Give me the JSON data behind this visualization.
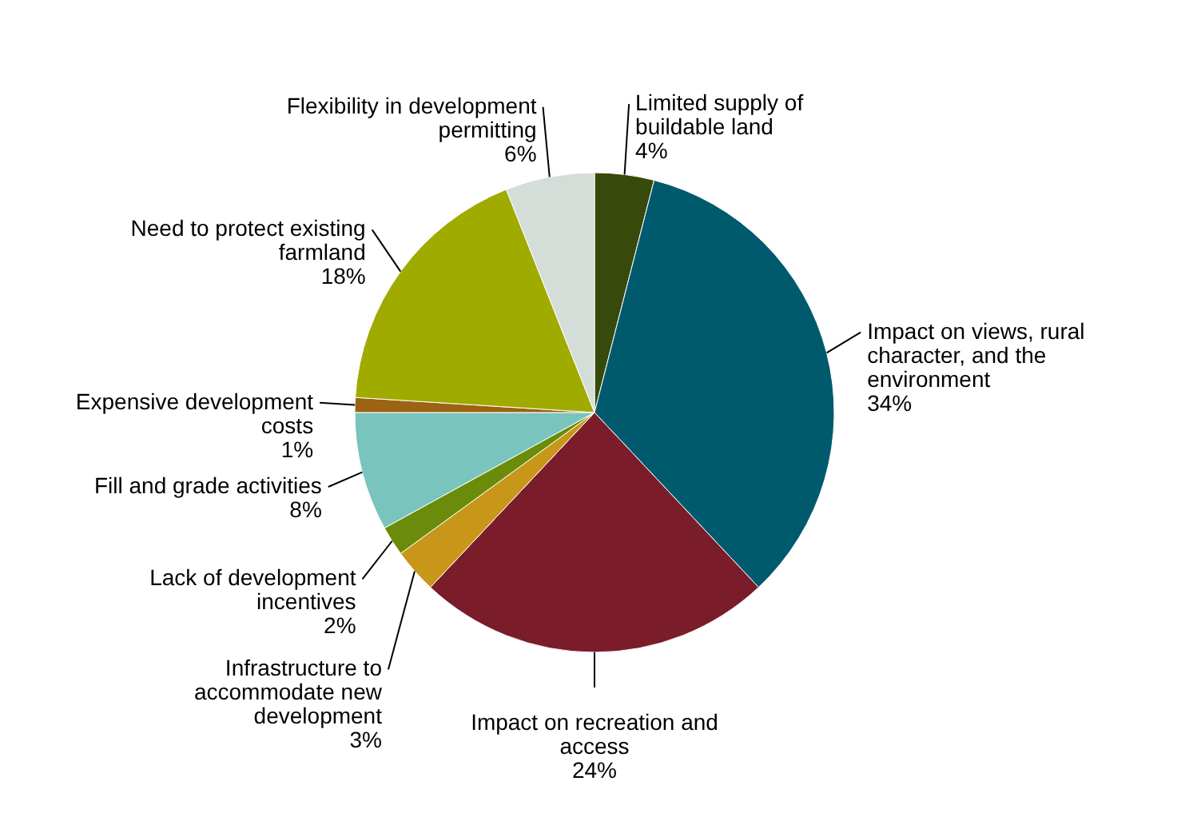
{
  "chart_data": {
    "type": "pie",
    "categories": [
      "Limited supply of buildable land",
      "Impact on views, rural character, and the environment",
      "Impact on recreation and access",
      "Infrastructure to accommodate new development",
      "Lack of development incentives",
      "Fill and grade activities",
      "Expensive development costs",
      "Need to protect existing farmland",
      "Flexibility in development permitting"
    ],
    "values": [
      4,
      34,
      24,
      3,
      2,
      8,
      1,
      18,
      6
    ],
    "value_labels": [
      "4%",
      "34%",
      "24%",
      "3%",
      "2%",
      "8%",
      "1%",
      "18%",
      "6%"
    ],
    "colors": [
      "#374a0b",
      "#005a6e",
      "#7a1c2a",
      "#c8971a",
      "#6a8c0a",
      "#79c4bd",
      "#9c6312",
      "#a0ab00",
      "#d5ddd9"
    ]
  }
}
